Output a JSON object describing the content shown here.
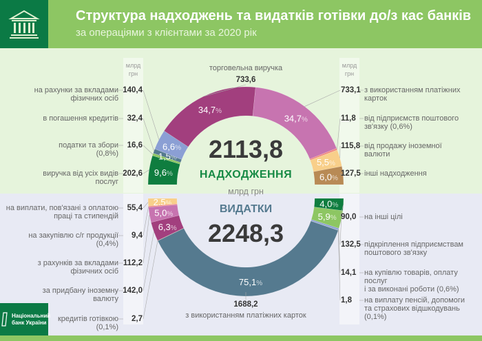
{
  "header": {
    "title": "Структура надходжень та видатків готівки до/з кас банків",
    "subtitle": "за операціями з клієнтами за 2020 рік",
    "icon": "bank-building-icon"
  },
  "footer": {
    "logo_text": "Національний\nбанк України"
  },
  "units_column": "млрд\nгрн",
  "colors": {
    "header": "#8dc663",
    "brand_dark": "#0b7a45",
    "income_bg": "#e6f4dc",
    "expense_bg": "#e8eaf4"
  },
  "chart_data": [
    {
      "type": "pie",
      "variant": "half-donut-top",
      "title": "НАДХОДЖЕННЯ",
      "total": "2113,8",
      "unit": "млрд грн",
      "segments": [
        {
          "label": "виручка від усіх видів\nпослуг",
          "value": "202,6",
          "pct": 9.6,
          "color": "#0f7d3f"
        },
        {
          "label": "податки та збори\n(0,8%)",
          "value": "16,6",
          "pct": 0.8,
          "color": "#8dc663"
        },
        {
          "label": "в погашення кредитів",
          "value": "32,4",
          "pct": 1.5,
          "color": "#557a8f"
        },
        {
          "label": "на рахунки за вкладами\nфізичних осіб",
          "value": "140,4",
          "pct": 6.6,
          "color": "#8b9fd4"
        },
        {
          "label": "торговельна виручка",
          "value": "733,6",
          "pct": 34.7,
          "color": "#a23f7e"
        },
        {
          "label": "з використанням платіжних\nкарток",
          "value": "733,1",
          "pct": 34.7,
          "color": "#c774b0"
        },
        {
          "label": "від підприємств поштового\nзв'язку (0,6%)",
          "value": "11,8",
          "pct": 0.6,
          "color": "#f08a80"
        },
        {
          "label": "від продажу іноземної\nвалюти",
          "value": "115,8",
          "pct": 5.5,
          "color": "#f8cf8a"
        },
        {
          "label": "інші надходження",
          "value": "127,5",
          "pct": 6.0,
          "color": "#b88a55"
        }
      ]
    },
    {
      "type": "pie",
      "variant": "half-donut-bottom",
      "title": "ВИДАТКИ",
      "total": "2248,3",
      "unit": "млрд грн",
      "segments": [
        {
          "label": "на виплати, пов'язані з оплатою\nпраці та стипендій",
          "value": "55,4",
          "pct": 2.5,
          "color": "#f8cf8a"
        },
        {
          "label": "на закупівлю с/г продукції\n(0,4%)",
          "value": "9,4",
          "pct": 0.4,
          "color": "#f08a80"
        },
        {
          "label": "з рахунків за вкладами\nфізичних осіб",
          "value": "112,2",
          "pct": 5.0,
          "color": "#c774b0"
        },
        {
          "label": "за придбану іноземну\nвалюту",
          "value": "142,0",
          "pct": 6.3,
          "color": "#a23f7e"
        },
        {
          "label": "кредитів готівкою\n(0,1%)",
          "value": "2,7",
          "pct": 0.1,
          "color": "#b88a55"
        },
        {
          "label": "з використанням платіжних карток",
          "value": "1688,2",
          "pct": 75.1,
          "color": "#557a8f"
        },
        {
          "label": "на виплату пенсій, допомоги\nта страхових відшкодувань\n(0,1%)",
          "value": "1,8",
          "pct": 0.1,
          "color": "#6f8fae"
        },
        {
          "label": "на купівлю товарів, оплату послуг\nі за виконані роботи (0,6%)",
          "value": "14,1",
          "pct": 0.6,
          "color": "#8b9fd4"
        },
        {
          "label": "підкріплення підприємствам\nпоштового зв'язку",
          "value": "132,5",
          "pct": 5.9,
          "color": "#8dc663"
        },
        {
          "label": "на інші цілі",
          "value": "90,0",
          "pct": 4.0,
          "color": "#0f7d3f"
        }
      ]
    }
  ]
}
